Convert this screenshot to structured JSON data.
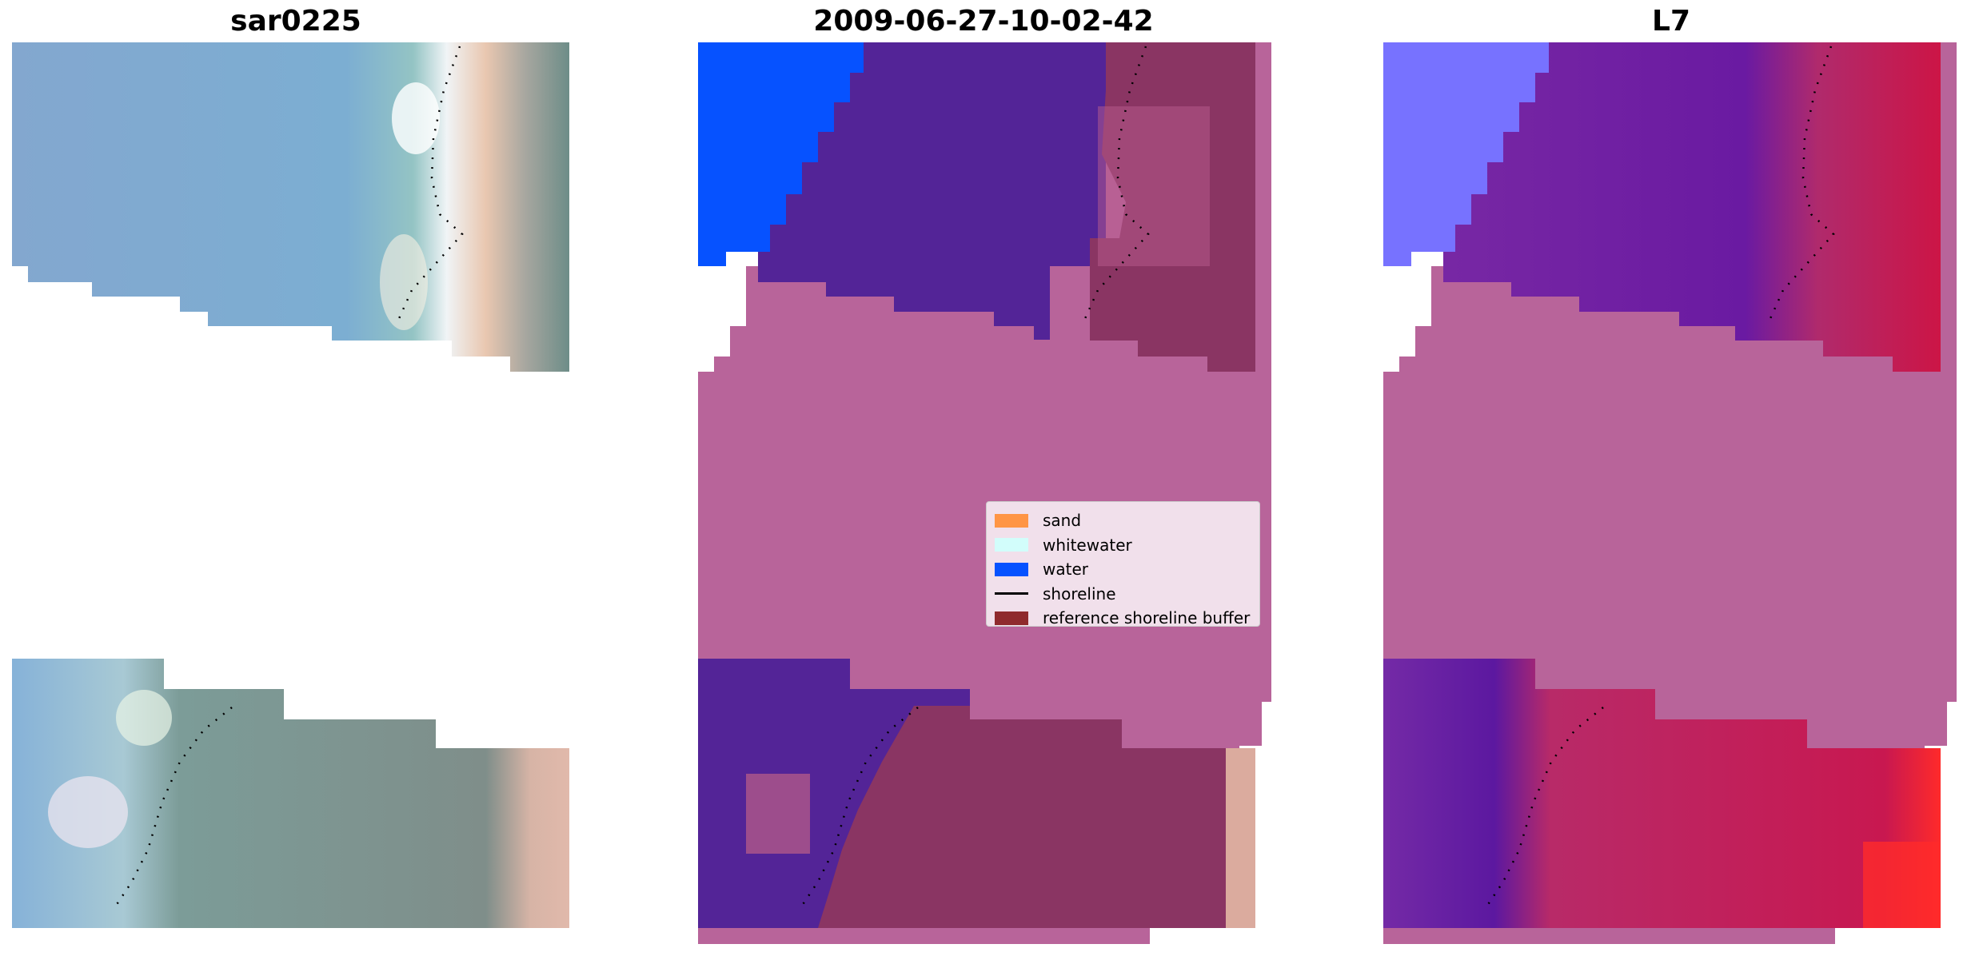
{
  "panels": [
    {
      "title": "sar0225"
    },
    {
      "title": "2009-06-27-10-02-42"
    },
    {
      "title": "L7"
    }
  ],
  "legend": {
    "items": [
      {
        "label": "sand",
        "color": "#ff9545"
      },
      {
        "label": "whitewater",
        "color": "#d2fdfb"
      },
      {
        "label": "water",
        "color": "#0652ff"
      },
      {
        "label": "shoreline",
        "color": "#000000"
      },
      {
        "label": "reference shoreline buffer",
        "color": "#8f2a2d"
      }
    ]
  },
  "colors": {
    "rgb_water": "#80a9cf",
    "rgb_land": "#7f9288",
    "class_water": "#532497",
    "class_nodata": "#b8649a",
    "class_buffer": "#8a3563",
    "mndwi_water": "#7a22a0",
    "mndwi_land": "#c9144a"
  }
}
